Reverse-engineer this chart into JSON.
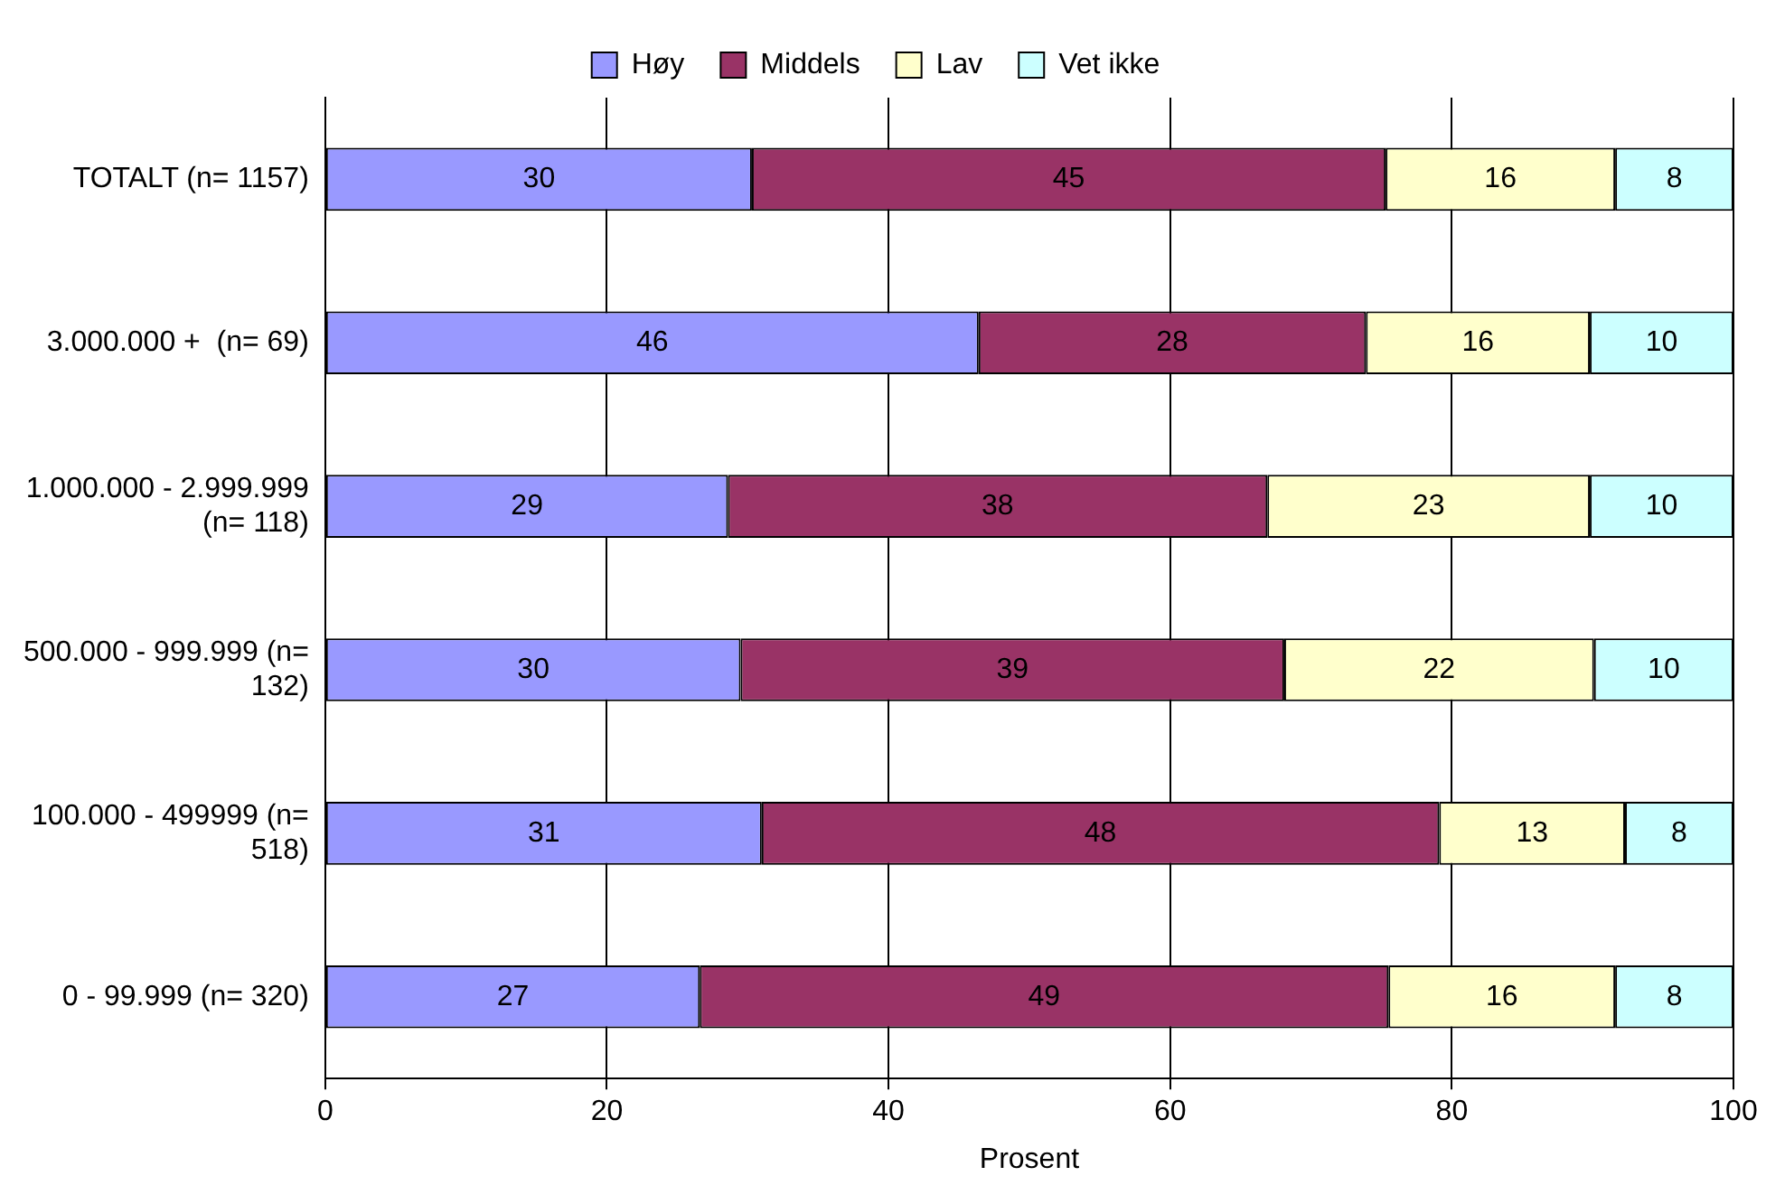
{
  "chart_data": {
    "type": "bar",
    "orientation": "horizontal",
    "stacked": true,
    "xlabel": "Prosent",
    "categories": [
      "TOTALT (n= 1157)",
      "3.000.000 +  (n= 69)",
      "1.000.000 - 2.999.999 (n= 118)",
      "500.000 - 999.999 (n= 132)",
      "100.000 - 499999 (n= 518)",
      "0 - 99.999 (n= 320)"
    ],
    "series": [
      {
        "name": "Høy",
        "color": "#9999ff",
        "values": [
          30.3,
          46.4,
          28.6,
          29.5,
          31.0,
          26.6
        ],
        "value_labels": [
          "30",
          "46",
          "29",
          "30",
          "31",
          "27"
        ]
      },
      {
        "name": "Middels",
        "color": "#993366",
        "values": [
          45.0,
          27.5,
          38.3,
          38.6,
          48.1,
          48.9
        ],
        "value_labels": [
          "45",
          "28",
          "38",
          "39",
          "48",
          "49"
        ]
      },
      {
        "name": "Lav",
        "color": "#ffffcc",
        "values": [
          16.3,
          15.9,
          22.9,
          22.0,
          13.2,
          16.1
        ],
        "value_labels": [
          "16",
          "16",
          "23",
          "22",
          "13",
          "16"
        ]
      },
      {
        "name": "Vet ikke",
        "color": "#ccffff",
        "values": [
          8.4,
          10.2,
          10.2,
          9.9,
          7.7,
          8.4
        ],
        "value_labels": [
          "8",
          "10",
          "10",
          "10",
          "8",
          "8"
        ]
      }
    ],
    "xlim": [
      0,
      100
    ],
    "xticks": [
      0,
      20,
      40,
      60,
      80,
      100
    ],
    "grid": "x",
    "legend": "top"
  }
}
